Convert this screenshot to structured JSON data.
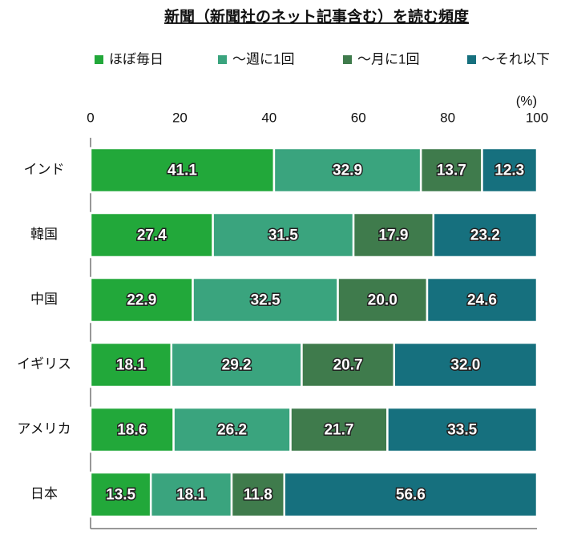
{
  "chart_data": {
    "type": "stacked_barh",
    "title": "新聞（新聞社のネット記事含む）を読む頻度",
    "xlabel": "(%)",
    "categories": [
      "インド",
      "韓国",
      "中国",
      "イギリス",
      "アメリカ",
      "日本"
    ],
    "series": [
      {
        "name": "ほぼ毎日",
        "color": "#22a83a",
        "values": [
          41.1,
          27.4,
          22.9,
          18.1,
          18.6,
          13.5
        ],
        "value_labels": [
          "41.1",
          "27.4",
          "22.9",
          "18.1",
          "18.6",
          "13.5"
        ]
      },
      {
        "name": "〜週に1回",
        "color": "#3aa47e",
        "values": [
          32.9,
          31.5,
          32.5,
          29.2,
          26.2,
          18.1
        ],
        "value_labels": [
          "32.9",
          "31.5",
          "32.5",
          "29.2",
          "26.2",
          "18.1"
        ]
      },
      {
        "name": "〜月に1回",
        "color": "#3f7b4c",
        "values": [
          13.7,
          17.9,
          20.0,
          20.7,
          21.7,
          11.8
        ],
        "value_labels": [
          "13.7",
          "17.9",
          "20.0",
          "20.7",
          "21.7",
          "11.8"
        ]
      },
      {
        "name": "〜それ以下",
        "color": "#16707e",
        "values": [
          12.3,
          23.2,
          24.6,
          32.0,
          33.5,
          56.6
        ],
        "value_labels": [
          "12.3",
          "23.2",
          "24.6",
          "32.0",
          "33.5",
          "56.6"
        ]
      }
    ],
    "xlim": [
      0,
      100
    ],
    "xticks": [
      0,
      20,
      40,
      60,
      80,
      100
    ]
  }
}
